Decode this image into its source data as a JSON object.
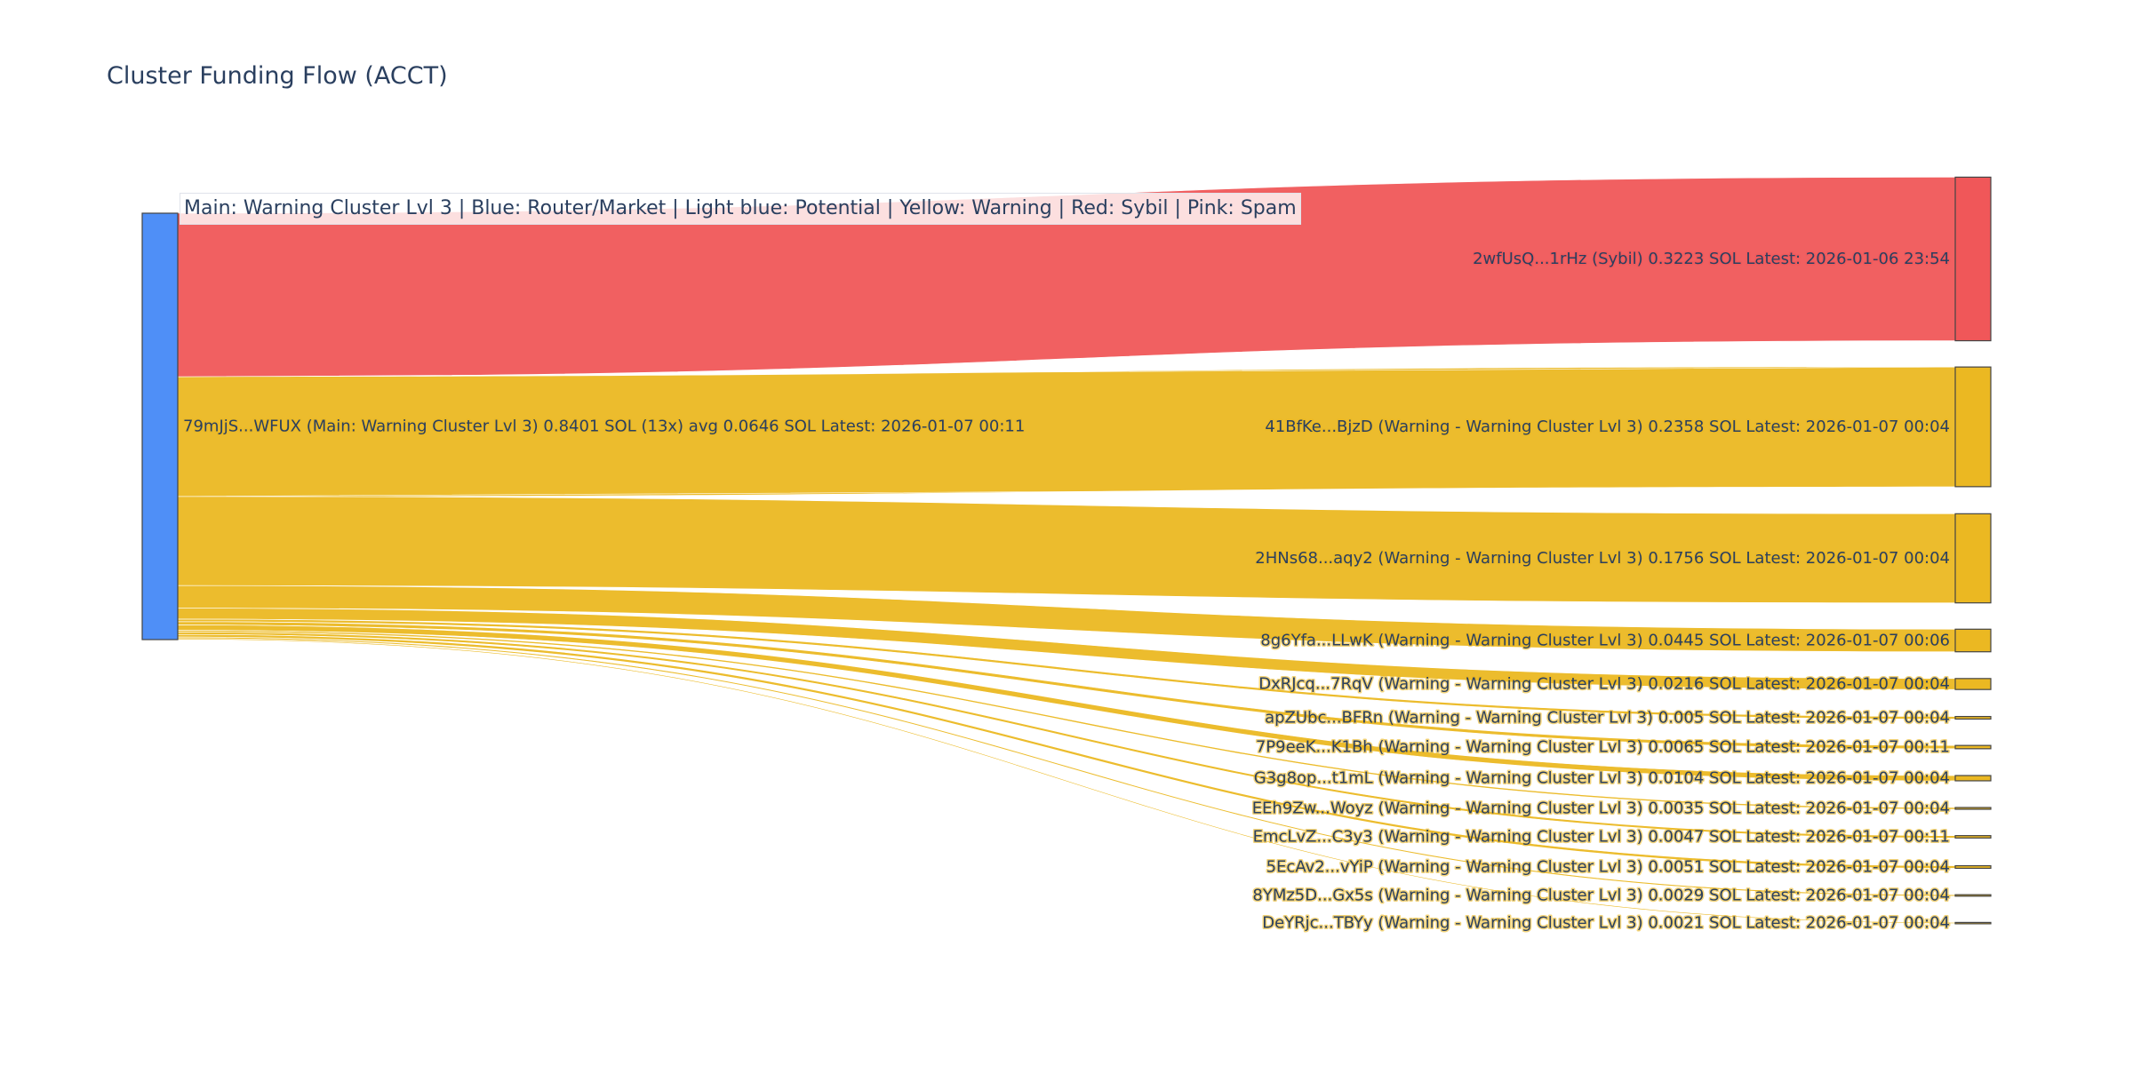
{
  "title": "Cluster Funding Flow (ACCT)",
  "legend_text": "Main: Warning Cluster Lvl 3  |  Blue: Router/Market | Light blue: Potential | Yellow: Warning | Red: Sybil | Pink: Spam",
  "colors": {
    "source_node": "#4f8ff7",
    "sybil": "#f05759",
    "warning": "#ebb822",
    "node_border": "#444444",
    "text": "#2a3f5f"
  },
  "chart_data": {
    "type": "sankey",
    "title": "Cluster Funding Flow (ACCT)",
    "units": "SOL",
    "source": {
      "id": "79mJjS...WFUX",
      "label": "79mJjS...WFUX (Main: Warning Cluster Lvl 3) 0.8401 SOL (13x) avg 0.0646 SOL Latest: 2026-01-07 00:11",
      "category": "Main: Warning Cluster Lvl 3",
      "total": 0.8401,
      "count": 13,
      "avg": 0.0646,
      "latest": "2026-01-07 00:11",
      "color": "blue"
    },
    "targets": [
      {
        "id": "2wfUsQ...1rHz",
        "category": "Sybil",
        "value": 0.3223,
        "latest": "2026-01-06 23:54",
        "color": "red",
        "label": "2wfUsQ...1rHz (Sybil) 0.3223 SOL Latest: 2026-01-06 23:54"
      },
      {
        "id": "41BfKe...BjzD",
        "category": "Warning - Warning Cluster Lvl 3",
        "value": 0.2358,
        "latest": "2026-01-07 00:04",
        "color": "yellow",
        "label": "41BfKe...BjzD (Warning - Warning Cluster Lvl 3) 0.2358 SOL Latest: 2026-01-07 00:04"
      },
      {
        "id": "2HNs68...aqy2",
        "category": "Warning - Warning Cluster Lvl 3",
        "value": 0.1756,
        "latest": "2026-01-07 00:04",
        "color": "yellow",
        "label": "2HNs68...aqy2 (Warning - Warning Cluster Lvl 3) 0.1756 SOL Latest: 2026-01-07 00:04"
      },
      {
        "id": "8g6Yfa...LLwK",
        "category": "Warning - Warning Cluster Lvl 3",
        "value": 0.0445,
        "latest": "2026-01-07 00:06",
        "color": "yellow",
        "label": "8g6Yfa...LLwK (Warning - Warning Cluster Lvl 3) 0.0445 SOL Latest: 2026-01-07 00:06"
      },
      {
        "id": "DxRJcq...7RqV",
        "category": "Warning - Warning Cluster Lvl 3",
        "value": 0.0216,
        "latest": "2026-01-07 00:04",
        "color": "yellow",
        "label": "DxRJcq...7RqV (Warning - Warning Cluster Lvl 3) 0.0216 SOL Latest: 2026-01-07 00:04"
      },
      {
        "id": "apZUbc...BFRn",
        "category": "Warning - Warning Cluster Lvl 3",
        "value": 0.005,
        "latest": "2026-01-07 00:04",
        "color": "yellow",
        "label": "apZUbc...BFRn (Warning - Warning Cluster Lvl 3) 0.005 SOL Latest: 2026-01-07 00:04"
      },
      {
        "id": "7P9eeK...K1Bh",
        "category": "Warning - Warning Cluster Lvl 3",
        "value": 0.0065,
        "latest": "2026-01-07 00:11",
        "color": "yellow",
        "label": "7P9eeK...K1Bh (Warning - Warning Cluster Lvl 3) 0.0065 SOL Latest: 2026-01-07 00:11"
      },
      {
        "id": "G3g8op...t1mL",
        "category": "Warning - Warning Cluster Lvl 3",
        "value": 0.0104,
        "latest": "2026-01-07 00:04",
        "color": "yellow",
        "label": "G3g8op...t1mL (Warning - Warning Cluster Lvl 3) 0.0104 SOL Latest: 2026-01-07 00:04"
      },
      {
        "id": "EEh9Zw...Woyz",
        "category": "Warning - Warning Cluster Lvl 3",
        "value": 0.0035,
        "latest": "2026-01-07 00:04",
        "color": "yellow",
        "label": "EEh9Zw...Woyz (Warning - Warning Cluster Lvl 3) 0.0035 SOL Latest: 2026-01-07 00:04"
      },
      {
        "id": "EmcLvZ...C3y3",
        "category": "Warning - Warning Cluster Lvl 3",
        "value": 0.0047,
        "latest": "2026-01-07 00:11",
        "color": "yellow",
        "label": "EmcLvZ...C3y3 (Warning - Warning Cluster Lvl 3) 0.0047 SOL Latest: 2026-01-07 00:11"
      },
      {
        "id": "5EcAv2...vYiP",
        "category": "Warning - Warning Cluster Lvl 3",
        "value": 0.0051,
        "latest": "2026-01-07 00:04",
        "color": "yellow",
        "label": "5EcAv2...vYiP (Warning - Warning Cluster Lvl 3) 0.0051 SOL Latest: 2026-01-07 00:04"
      },
      {
        "id": "8YMz5D...Gx5s",
        "category": "Warning - Warning Cluster Lvl 3",
        "value": 0.0029,
        "latest": "2026-01-07 00:04",
        "color": "yellow",
        "label": "8YMz5D...Gx5s (Warning - Warning Cluster Lvl 3) 0.0029 SOL Latest: 2026-01-07 00:04"
      },
      {
        "id": "DeYRjc...TBYy",
        "category": "Warning - Warning Cluster Lvl 3",
        "value": 0.0021,
        "latest": "2026-01-07 00:04",
        "color": "yellow",
        "label": "DeYRjc...TBYy (Warning - Warning Cluster Lvl 3) 0.0021 SOL Latest: 2026-01-07 00:04"
      }
    ]
  }
}
